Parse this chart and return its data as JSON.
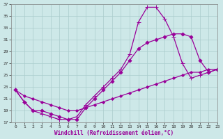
{
  "background_color": "#cde8e8",
  "grid_color": "#aacccc",
  "line_color": "#990099",
  "xlabel": "Windchill (Refroidissement éolien,°C)",
  "xlim": [
    -0.5,
    23
  ],
  "ylim": [
    17,
    37
  ],
  "yticks": [
    17,
    19,
    21,
    23,
    25,
    27,
    29,
    31,
    33,
    35,
    37
  ],
  "xticks": [
    0,
    1,
    2,
    3,
    4,
    5,
    6,
    7,
    8,
    9,
    10,
    11,
    12,
    13,
    14,
    15,
    16,
    17,
    18,
    19,
    20,
    21,
    22,
    23
  ],
  "series": [
    {
      "x": [
        0,
        1,
        2,
        3,
        4,
        5,
        6,
        7,
        8,
        9,
        10,
        11,
        12,
        13,
        14,
        15,
        16,
        17,
        18,
        19,
        20,
        21,
        22,
        23
      ],
      "y": [
        22.5,
        20.5,
        19.0,
        18.5,
        18.0,
        17.5,
        17.5,
        18.0,
        20.0,
        21.5,
        23.0,
        24.5,
        26.0,
        28.5,
        34.0,
        36.5,
        36.5,
        34.5,
        31.5,
        27.0,
        24.5,
        25.0,
        25.5,
        26.0
      ],
      "marker": "+",
      "markersize": 4,
      "lw": 0.9
    },
    {
      "x": [
        0,
        1,
        2,
        3,
        4,
        5,
        6,
        7,
        8,
        9,
        10,
        11,
        12,
        13,
        14,
        15,
        16,
        17,
        18,
        19,
        20,
        21,
        22,
        23
      ],
      "y": [
        22.5,
        20.5,
        19.0,
        19.0,
        18.5,
        18.0,
        17.5,
        17.5,
        19.5,
        21.0,
        22.5,
        24.0,
        25.5,
        27.5,
        29.5,
        30.5,
        31.0,
        31.5,
        32.0,
        32.0,
        31.5,
        27.5,
        25.5,
        26.0
      ],
      "marker": "D",
      "markersize": 2.5,
      "lw": 0.9
    },
    {
      "x": [
        0,
        1,
        2,
        3,
        4,
        5,
        6,
        7,
        8,
        9,
        10,
        11,
        12,
        13,
        14,
        15,
        16,
        17,
        18,
        19,
        20,
        21,
        22,
        23
      ],
      "y": [
        22.5,
        21.5,
        21.0,
        20.5,
        20.0,
        19.5,
        19.0,
        19.0,
        19.5,
        20.0,
        20.5,
        21.0,
        21.5,
        22.0,
        22.5,
        23.0,
        23.5,
        24.0,
        24.5,
        25.0,
        25.5,
        25.5,
        26.0,
        26.0
      ],
      "marker": "D",
      "markersize": 2.0,
      "lw": 0.9
    }
  ]
}
